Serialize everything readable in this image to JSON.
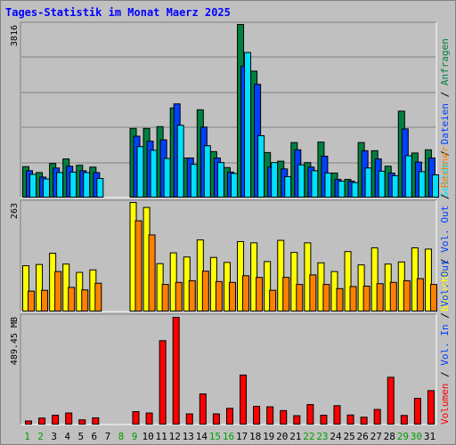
{
  "chart_data": {
    "type": "bar",
    "title": "Tages-Statistik im Monat Maerz 2025",
    "days": [
      "1",
      "2",
      "3",
      "4",
      "5",
      "6",
      "7",
      "8",
      "9",
      "10",
      "11",
      "12",
      "13",
      "14",
      "15",
      "16",
      "17",
      "18",
      "19",
      "20",
      "21",
      "22",
      "23",
      "24",
      "25",
      "26",
      "27",
      "28",
      "29",
      "30",
      "31"
    ],
    "weekend_days": [
      "1",
      "2",
      "8",
      "9",
      "15",
      "16",
      "22",
      "23",
      "29",
      "30"
    ],
    "colors": {
      "background": "#c0c0c0",
      "title": "#0000ff",
      "anfragen": "#008040",
      "dateien": "#0040ff",
      "seiten": "#00e0ff",
      "besuche": "#ffff00",
      "rechner": "#ff8000",
      "volumen": "#ff0000",
      "weekend_label": "#00a000",
      "weekday_label": "#000000"
    },
    "panels": [
      {
        "id": "hits",
        "max_label": "3816",
        "max_value": 3816,
        "series": [
          {
            "key": "anfragen",
            "name": "Anfragen",
            "values": [
              690,
              560,
              760,
              860,
              720,
              680,
              0,
              0,
              1530,
              1530,
              1570,
              1980,
              880,
              1940,
              1020,
              670,
              3816,
              2790,
              1000,
              810,
              1220,
              780,
              1230,
              550,
              410,
              1220,
              1040,
              700,
              1910,
              990,
              1060
            ]
          },
          {
            "key": "dateien",
            "name": "Dateien",
            "values": [
              600,
              460,
              660,
              700,
              600,
              560,
              0,
              0,
              1360,
              1250,
              1280,
              2070,
              880,
              1560,
              880,
              570,
              2900,
              2500,
              680,
              640,
              1060,
              680,
              920,
              410,
              370,
              1040,
              860,
              550,
              1520,
              790,
              880
            ]
          },
          {
            "key": "seiten",
            "name": "Seiten",
            "values": [
              520,
              420,
              560,
              570,
              560,
              430,
              0,
              0,
              1130,
              1050,
              870,
              1600,
              740,
              1150,
              780,
              540,
              3200,
              1370,
              780,
              470,
              730,
              600,
              550,
              370,
              340,
              660,
              590,
              490,
              930,
              580,
              510
            ]
          }
        ],
        "legend": [
          {
            "key": "seiten",
            "text": "Seiten"
          },
          {
            "key": "dateien",
            "text": "Dateien"
          },
          {
            "key": "anfragen",
            "text": "Anfragen"
          }
        ]
      },
      {
        "id": "visits",
        "max_label": "263",
        "max_value": 263,
        "series": [
          {
            "key": "besuche",
            "name": "Besuche",
            "values": [
              111,
              114,
              141,
              115,
              95,
              101,
              0,
              0,
              263,
              251,
              116,
              142,
              132,
              173,
              131,
              119,
              169,
              166,
              121,
              172,
              143,
              166,
              118,
              97,
              145,
              113,
              154,
              115,
              120,
              154,
              151
            ]
          },
          {
            "key": "rechner",
            "name": "Rechner",
            "values": [
              50,
              52,
              97,
              59,
              53,
              69,
              0,
              0,
              219,
              185,
              66,
              71,
              75,
              98,
              73,
              71,
              87,
              83,
              52,
              83,
              66,
              89,
              66,
              56,
              61,
              62,
              68,
              71,
              75,
              80,
              66
            ]
          }
        ],
        "legend": [
          {
            "key": "besuche",
            "text": "Besuche"
          },
          {
            "key": "dateien",
            "text": "Vol. Out"
          },
          {
            "key": "rechner",
            "text": "Rechner"
          }
        ]
      },
      {
        "id": "volume",
        "max_label": "489.45 MB",
        "max_value": 489.45,
        "series": [
          {
            "key": "volumen",
            "name": "Volumen",
            "values": [
              18,
              31,
              44,
              54,
              23,
              32,
              0,
              0,
              60,
              54,
              380,
              485,
              50,
              140,
              50,
              75,
              225,
              84,
              82,
              65,
              42,
              92,
              44,
              87,
              45,
              35,
              70,
              215,
              43,
              120,
              155
            ]
          }
        ],
        "legend": [
          {
            "key": "volumen",
            "text": "Volumen"
          },
          {
            "key": "dateien",
            "text": "Vol. In"
          },
          {
            "key": "dateien",
            "text": "Vol. Out"
          }
        ]
      }
    ]
  }
}
